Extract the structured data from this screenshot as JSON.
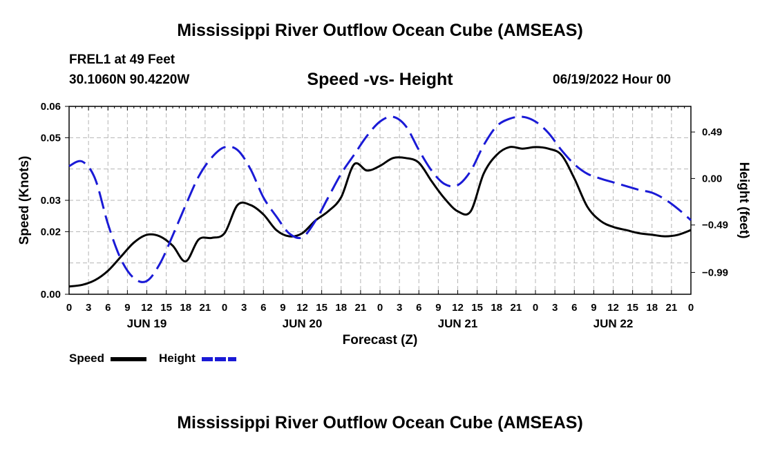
{
  "header": {
    "title": "Mississippi River Outflow Ocean Cube (AMSEAS)",
    "station": "FREL1 at 49 Feet",
    "coords": "30.1060N  90.4220W",
    "subtitle": "Speed -vs- Height",
    "datetime": "06/19/2022 Hour 00"
  },
  "footer": {
    "title": "Mississippi River Outflow Ocean Cube (AMSEAS)"
  },
  "legend": {
    "speed_label": "Speed",
    "height_label": "Height"
  },
  "colors": {
    "speed": "#000000",
    "height": "#1a1ad6",
    "grid": "#b4b4b4"
  },
  "chart_data": {
    "type": "line",
    "title": "Speed -vs- Height",
    "xlabel": "Forecast (Z)",
    "ylabel": "Speed (Knots)",
    "y2label": "Height (feet)",
    "xlim": [
      0,
      96
    ],
    "ylim": [
      0.0,
      0.06
    ],
    "y2lim": [
      -1.22,
      0.76
    ],
    "grid": true,
    "x_ticks": [
      0,
      3,
      6,
      9,
      12,
      15,
      18,
      21,
      24,
      27,
      30,
      33,
      36,
      39,
      42,
      45,
      48,
      51,
      54,
      57,
      60,
      63,
      66,
      69,
      72,
      75,
      78,
      81,
      84,
      87,
      90,
      93,
      96
    ],
    "x_tick_labels": [
      "0",
      "3",
      "6",
      "9",
      "12",
      "15",
      "18",
      "21",
      "0",
      "3",
      "6",
      "9",
      "12",
      "15",
      "18",
      "21",
      "0",
      "3",
      "6",
      "9",
      "12",
      "15",
      "18",
      "21",
      "0",
      "3",
      "6",
      "9",
      "12",
      "15",
      "18",
      "21",
      "0"
    ],
    "date_labels": [
      {
        "x": 12,
        "label": "JUN 19"
      },
      {
        "x": 36,
        "label": "JUN 20"
      },
      {
        "x": 60,
        "label": "JUN 21"
      },
      {
        "x": 84,
        "label": "JUN 22"
      }
    ],
    "y_ticks": [
      0.0,
      0.02,
      0.03,
      0.05,
      0.06
    ],
    "y_tick_labels": [
      "0.00",
      "0.02",
      "0.03",
      "0.05",
      "0.06"
    ],
    "y2_ticks": [
      0.49,
      0.0,
      -0.49,
      -0.99
    ],
    "y2_tick_labels": [
      "0.49",
      "0.00",
      "−0.49",
      "−0.99"
    ],
    "series": [
      {
        "name": "Speed",
        "axis": "left",
        "style": "solid",
        "x": [
          0,
          2,
          4,
          6,
          8,
          10,
          12,
          14,
          16,
          18,
          20,
          22,
          24,
          26,
          28,
          30,
          32,
          34,
          36,
          38,
          40,
          42,
          44,
          46,
          48,
          50,
          52,
          54,
          56,
          58,
          60,
          62,
          64,
          66,
          68,
          70,
          72,
          74,
          76,
          78,
          80,
          82,
          84,
          86,
          88,
          90,
          92,
          94,
          96
        ],
        "values": [
          0.0025,
          0.003,
          0.0045,
          0.0075,
          0.012,
          0.0165,
          0.019,
          0.0185,
          0.0155,
          0.0105,
          0.0175,
          0.018,
          0.0195,
          0.0285,
          0.0285,
          0.0255,
          0.0205,
          0.0185,
          0.0195,
          0.0235,
          0.0265,
          0.031,
          0.0415,
          0.0395,
          0.041,
          0.0435,
          0.0435,
          0.042,
          0.036,
          0.0305,
          0.0265,
          0.0265,
          0.0385,
          0.0445,
          0.047,
          0.0465,
          0.047,
          0.0465,
          0.0445,
          0.037,
          0.028,
          0.0235,
          0.0215,
          0.0205,
          0.0195,
          0.019,
          0.0185,
          0.019,
          0.0205
        ]
      },
      {
        "name": "Height",
        "axis": "right",
        "style": "dashed",
        "x": [
          0,
          2,
          4,
          6,
          8,
          10,
          12,
          14,
          16,
          18,
          20,
          22,
          24,
          26,
          28,
          30,
          32,
          34,
          36,
          38,
          40,
          42,
          44,
          46,
          48,
          50,
          52,
          54,
          56,
          58,
          60,
          62,
          64,
          66,
          68,
          70,
          72,
          74,
          76,
          78,
          80,
          82,
          84,
          86,
          88,
          90,
          92,
          94,
          96
        ],
        "values": [
          0.13,
          0.18,
          0.0,
          -0.48,
          -0.85,
          -1.05,
          -1.08,
          -0.9,
          -0.6,
          -0.28,
          0.02,
          0.22,
          0.33,
          0.3,
          0.1,
          -0.2,
          -0.4,
          -0.58,
          -0.62,
          -0.45,
          -0.2,
          0.05,
          0.25,
          0.45,
          0.6,
          0.65,
          0.55,
          0.3,
          0.08,
          -0.06,
          -0.07,
          0.08,
          0.35,
          0.55,
          0.63,
          0.65,
          0.6,
          0.48,
          0.3,
          0.15,
          0.05,
          0.0,
          -0.04,
          -0.08,
          -0.12,
          -0.15,
          -0.22,
          -0.32,
          -0.44
        ]
      }
    ]
  }
}
